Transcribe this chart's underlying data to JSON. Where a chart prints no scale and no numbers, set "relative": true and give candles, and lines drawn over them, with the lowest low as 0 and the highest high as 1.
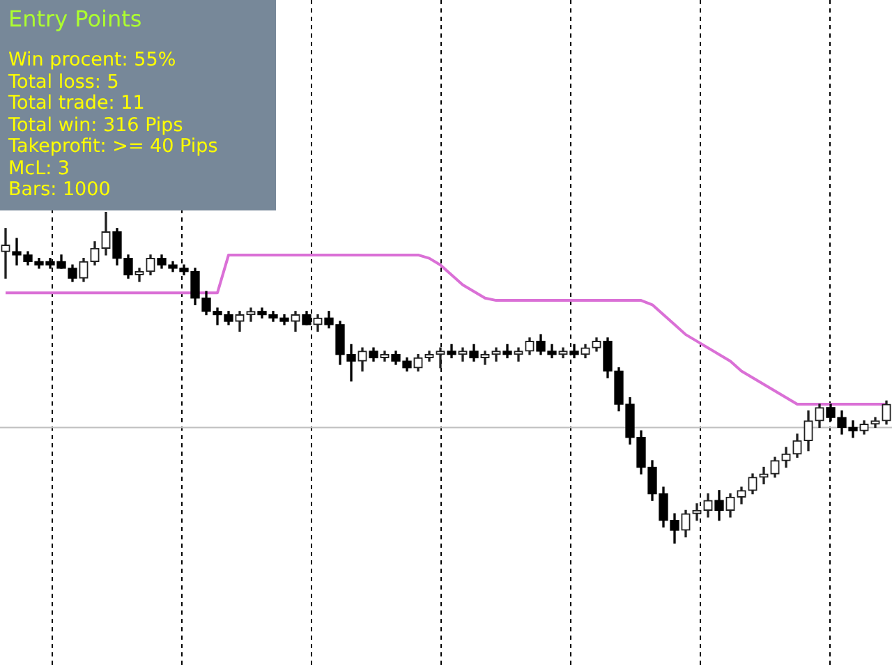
{
  "chart_data": {
    "type": "candlestick",
    "title": "Entry Points",
    "annotations": [
      "Win procent: 55%",
      "Total loss: 5",
      "Total trade: 11",
      "Total win: 316 Pips",
      "Takeprofit: >= 40 Pips",
      "McL: 3",
      "Bars: 1000"
    ],
    "relative": true,
    "categories": [
      null,
      null,
      null,
      null,
      null,
      null,
      null,
      null,
      null,
      null,
      null,
      null,
      null,
      null,
      null,
      null,
      null,
      null,
      null,
      null,
      null,
      null,
      null,
      null,
      null,
      null,
      null,
      null,
      null,
      null,
      null,
      null,
      null,
      null,
      null,
      null,
      null,
      null,
      null,
      null,
      null,
      null,
      null,
      null,
      null,
      null,
      null,
      null,
      null,
      null,
      null,
      null,
      null,
      null,
      null,
      null,
      null,
      null,
      null,
      null,
      null,
      null,
      null,
      null,
      null,
      null,
      null,
      null,
      null,
      null,
      null,
      null,
      null,
      null,
      null,
      null,
      null,
      null,
      null,
      null
    ],
    "ohlc": [
      [
        0.88,
        0.95,
        0.8,
        0.9
      ],
      [
        0.88,
        0.92,
        0.84,
        0.87
      ],
      [
        0.87,
        0.88,
        0.84,
        0.85
      ],
      [
        0.85,
        0.86,
        0.83,
        0.84
      ],
      [
        0.85,
        0.86,
        0.83,
        0.84
      ],
      [
        0.85,
        0.87,
        0.83,
        0.83
      ],
      [
        0.83,
        0.84,
        0.79,
        0.8
      ],
      [
        0.8,
        0.86,
        0.79,
        0.85
      ],
      [
        0.85,
        0.91,
        0.84,
        0.89
      ],
      [
        0.89,
        1.0,
        0.87,
        0.94
      ],
      [
        0.94,
        0.95,
        0.84,
        0.86
      ],
      [
        0.86,
        0.87,
        0.8,
        0.81
      ],
      [
        0.81,
        0.83,
        0.79,
        0.82
      ],
      [
        0.82,
        0.87,
        0.81,
        0.86
      ],
      [
        0.86,
        0.87,
        0.83,
        0.84
      ],
      [
        0.84,
        0.85,
        0.82,
        0.83
      ],
      [
        0.83,
        0.84,
        0.81,
        0.82
      ],
      [
        0.82,
        0.83,
        0.72,
        0.74
      ],
      [
        0.74,
        0.76,
        0.69,
        0.7
      ],
      [
        0.7,
        0.71,
        0.66,
        0.69
      ],
      [
        0.69,
        0.7,
        0.66,
        0.67
      ],
      [
        0.67,
        0.7,
        0.64,
        0.69
      ],
      [
        0.69,
        0.71,
        0.67,
        0.7
      ],
      [
        0.7,
        0.71,
        0.68,
        0.69
      ],
      [
        0.69,
        0.7,
        0.67,
        0.68
      ],
      [
        0.68,
        0.69,
        0.66,
        0.67
      ],
      [
        0.67,
        0.7,
        0.64,
        0.69
      ],
      [
        0.69,
        0.7,
        0.66,
        0.66
      ],
      [
        0.66,
        0.69,
        0.64,
        0.68
      ],
      [
        0.68,
        0.7,
        0.65,
        0.66
      ],
      [
        0.66,
        0.67,
        0.54,
        0.57
      ],
      [
        0.57,
        0.6,
        0.49,
        0.55
      ],
      [
        0.55,
        0.59,
        0.52,
        0.58
      ],
      [
        0.58,
        0.59,
        0.55,
        0.56
      ],
      [
        0.56,
        0.58,
        0.55,
        0.57
      ],
      [
        0.57,
        0.58,
        0.54,
        0.55
      ],
      [
        0.55,
        0.56,
        0.52,
        0.53
      ],
      [
        0.53,
        0.57,
        0.52,
        0.56
      ],
      [
        0.56,
        0.58,
        0.55,
        0.57
      ],
      [
        0.57,
        0.59,
        0.53,
        0.58
      ],
      [
        0.58,
        0.6,
        0.56,
        0.57
      ],
      [
        0.57,
        0.59,
        0.55,
        0.58
      ],
      [
        0.58,
        0.6,
        0.55,
        0.56
      ],
      [
        0.56,
        0.58,
        0.54,
        0.57
      ],
      [
        0.57,
        0.59,
        0.55,
        0.58
      ],
      [
        0.58,
        0.6,
        0.56,
        0.57
      ],
      [
        0.57,
        0.59,
        0.55,
        0.58
      ],
      [
        0.58,
        0.62,
        0.57,
        0.61
      ],
      [
        0.61,
        0.63,
        0.57,
        0.58
      ],
      [
        0.58,
        0.6,
        0.56,
        0.57
      ],
      [
        0.57,
        0.59,
        0.56,
        0.58
      ],
      [
        0.58,
        0.6,
        0.56,
        0.57
      ],
      [
        0.57,
        0.6,
        0.56,
        0.59
      ],
      [
        0.59,
        0.62,
        0.58,
        0.61
      ],
      [
        0.61,
        0.62,
        0.5,
        0.52
      ],
      [
        0.52,
        0.53,
        0.4,
        0.42
      ],
      [
        0.42,
        0.44,
        0.3,
        0.32
      ],
      [
        0.32,
        0.34,
        0.21,
        0.23
      ],
      [
        0.23,
        0.25,
        0.13,
        0.15
      ],
      [
        0.15,
        0.17,
        0.05,
        0.07
      ],
      [
        0.07,
        0.09,
        0.0,
        0.04
      ],
      [
        0.04,
        0.1,
        0.02,
        0.09
      ],
      [
        0.09,
        0.12,
        0.07,
        0.1
      ],
      [
        0.1,
        0.15,
        0.08,
        0.13
      ],
      [
        0.13,
        0.16,
        0.07,
        0.1
      ],
      [
        0.1,
        0.15,
        0.08,
        0.14
      ],
      [
        0.14,
        0.17,
        0.12,
        0.16
      ],
      [
        0.16,
        0.21,
        0.15,
        0.2
      ],
      [
        0.2,
        0.23,
        0.18,
        0.21
      ],
      [
        0.21,
        0.26,
        0.2,
        0.25
      ],
      [
        0.25,
        0.29,
        0.23,
        0.27
      ],
      [
        0.27,
        0.33,
        0.26,
        0.31
      ],
      [
        0.31,
        0.4,
        0.28,
        0.37
      ],
      [
        0.37,
        0.42,
        0.35,
        0.41
      ],
      [
        0.41,
        0.42,
        0.37,
        0.38
      ],
      [
        0.38,
        0.4,
        0.33,
        0.35
      ],
      [
        0.35,
        0.37,
        0.32,
        0.34
      ],
      [
        0.34,
        0.37,
        0.33,
        0.36
      ],
      [
        0.36,
        0.38,
        0.35,
        0.37
      ],
      [
        0.37,
        0.43,
        0.36,
        0.42
      ]
    ],
    "series": [
      {
        "type": "line",
        "color": "#da70d6",
        "values": [
          0.756,
          0.756,
          0.756,
          0.756,
          0.756,
          0.756,
          0.756,
          0.756,
          0.756,
          0.756,
          0.756,
          0.756,
          0.756,
          0.756,
          0.756,
          0.756,
          0.756,
          0.756,
          0.756,
          0.756,
          0.87,
          0.87,
          0.87,
          0.87,
          0.87,
          0.87,
          0.87,
          0.87,
          0.87,
          0.87,
          0.87,
          0.87,
          0.87,
          0.87,
          0.87,
          0.87,
          0.87,
          0.87,
          0.86,
          0.84,
          0.81,
          0.78,
          0.76,
          0.74,
          0.733,
          0.733,
          0.733,
          0.733,
          0.733,
          0.733,
          0.733,
          0.733,
          0.733,
          0.733,
          0.733,
          0.733,
          0.733,
          0.733,
          0.72,
          0.69,
          0.66,
          0.63,
          0.61,
          0.59,
          0.57,
          0.55,
          0.52,
          0.5,
          0.48,
          0.46,
          0.44,
          0.42,
          0.42,
          0.42,
          0.42,
          0.42,
          0.42,
          0.42,
          0.42,
          0.42
        ]
      }
    ],
    "ref_lines": [
      {
        "axis": "y",
        "value": 0.35,
        "color": "#c0c0c0"
      }
    ]
  }
}
